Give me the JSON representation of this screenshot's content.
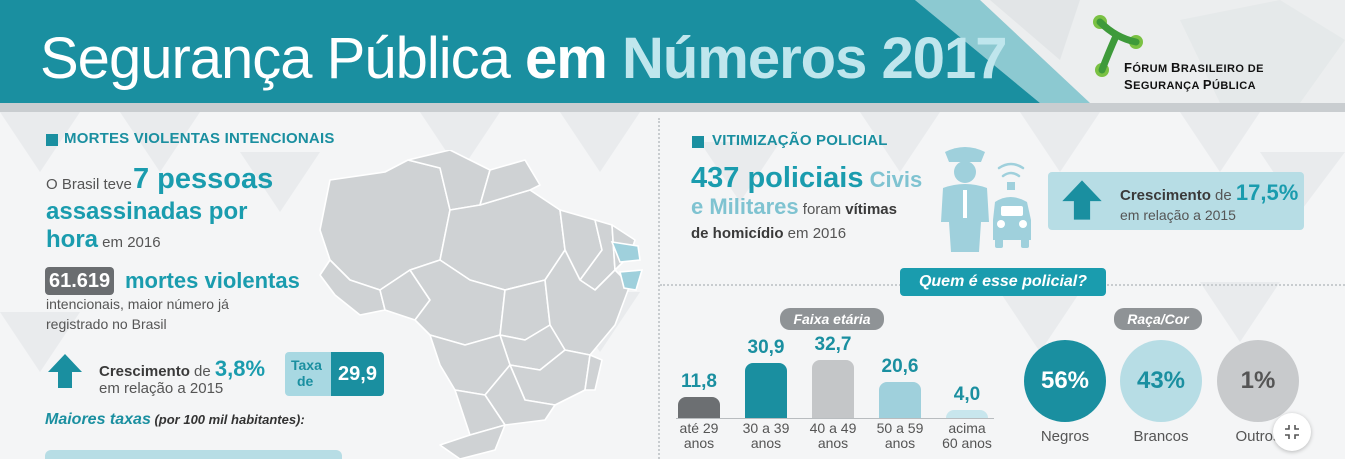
{
  "header": {
    "title_part1": "Segurança Pública ",
    "title_part2": "em ",
    "title_part3": "Números 2017",
    "logo_line1_a": "F",
    "logo_line1_b": "ÓRUM ",
    "logo_line1_c": "B",
    "logo_line1_d": "RASILEIRO DE",
    "logo_line2_a": "S",
    "logo_line2_b": "EGURANÇA ",
    "logo_line2_c": "P",
    "logo_line2_d": "ÚBLICA"
  },
  "left": {
    "section_title": "MORTES VIOLENTAS INTENCIONAIS",
    "intro_prefix": "O Brasil teve ",
    "intro_big": "7 pessoas",
    "intro_line2": "assassinadas por",
    "intro_line3_big": "hora",
    "intro_line3_small": " em 2016",
    "deaths_badge": "61.619",
    "deaths_label": "mortes violentas",
    "deaths_desc1": "intencionais, maior número já",
    "deaths_desc2": "registrado no Brasil",
    "growth_prefix": "Crescimento",
    "growth_de": " de ",
    "growth_value": "3,8%",
    "growth_suffix": "em relação a 2015",
    "taxa_label1": "Taxa",
    "taxa_label2": "de",
    "taxa_value": "29,9",
    "maiores_label": "Maiores taxas",
    "maiores_sub": " (por 100 mil habitantes):"
  },
  "right": {
    "section_title": "VITIMIZAÇÃO POLICIAL",
    "police_big": "437 policiais",
    "police_civis": " Civis",
    "police_line2_big": "e Militares",
    "police_line2_small": " foram ",
    "police_line2_bold": "vítimas",
    "police_line3_bold": "de homicídio",
    "police_line3_small": " em 2016",
    "growth_prefix": "Crescimento",
    "growth_de": " de ",
    "growth_value": "17,5%",
    "growth_suffix": "em relação a 2015",
    "who_pill": "Quem é esse policial?",
    "age_pill": "Faixa etária",
    "race_pill": "Raça/Cor"
  },
  "chart_data": {
    "type": "bar",
    "categories": [
      "até 29 anos",
      "30 a 39 anos",
      "40 a 49 anos",
      "50 a 59 anos",
      "acima 60 anos"
    ],
    "values": [
      11.8,
      30.9,
      32.7,
      20.6,
      4.0
    ],
    "value_labels": [
      "11,8",
      "30,9",
      "32,7",
      "20,6",
      "4,0"
    ],
    "label_lines": [
      [
        "até 29",
        "anos"
      ],
      [
        "30 a 39",
        "anos"
      ],
      [
        "40 a 49",
        "anos"
      ],
      [
        "50 a 59",
        "anos"
      ],
      [
        "acima",
        "60 anos"
      ]
    ],
    "colors": [
      "#6c6f72",
      "#1a8fa0",
      "#c4c6c8",
      "#9fd0dc",
      "#c8e6ed"
    ],
    "value_colors": [
      "#1a8fa0",
      "#1a8fa0",
      "#1a8fa0",
      "#1a8fa0",
      "#1a8fa0"
    ],
    "ylim": [
      0,
      35
    ]
  },
  "race": [
    {
      "value": "56%",
      "label": "Negros",
      "bg": "#1a8fa0",
      "fg": "#ffffff"
    },
    {
      "value": "43%",
      "label": "Brancos",
      "bg": "#b7dde5",
      "fg": "#1a8fa0"
    },
    {
      "value": "1%",
      "label": "Outros",
      "bg": "#c8cacc",
      "fg": "#555555"
    }
  ],
  "colors": {
    "teal": "#1a8fa0",
    "light_teal": "#b7dde5",
    "gray_dark": "#6a6d70"
  },
  "icons": {
    "logo": "fbsp-logo-icon",
    "arrow": "arrow-up-icon",
    "police": "police-officer-icon",
    "car": "police-car-icon",
    "expand": "expand-icon"
  }
}
